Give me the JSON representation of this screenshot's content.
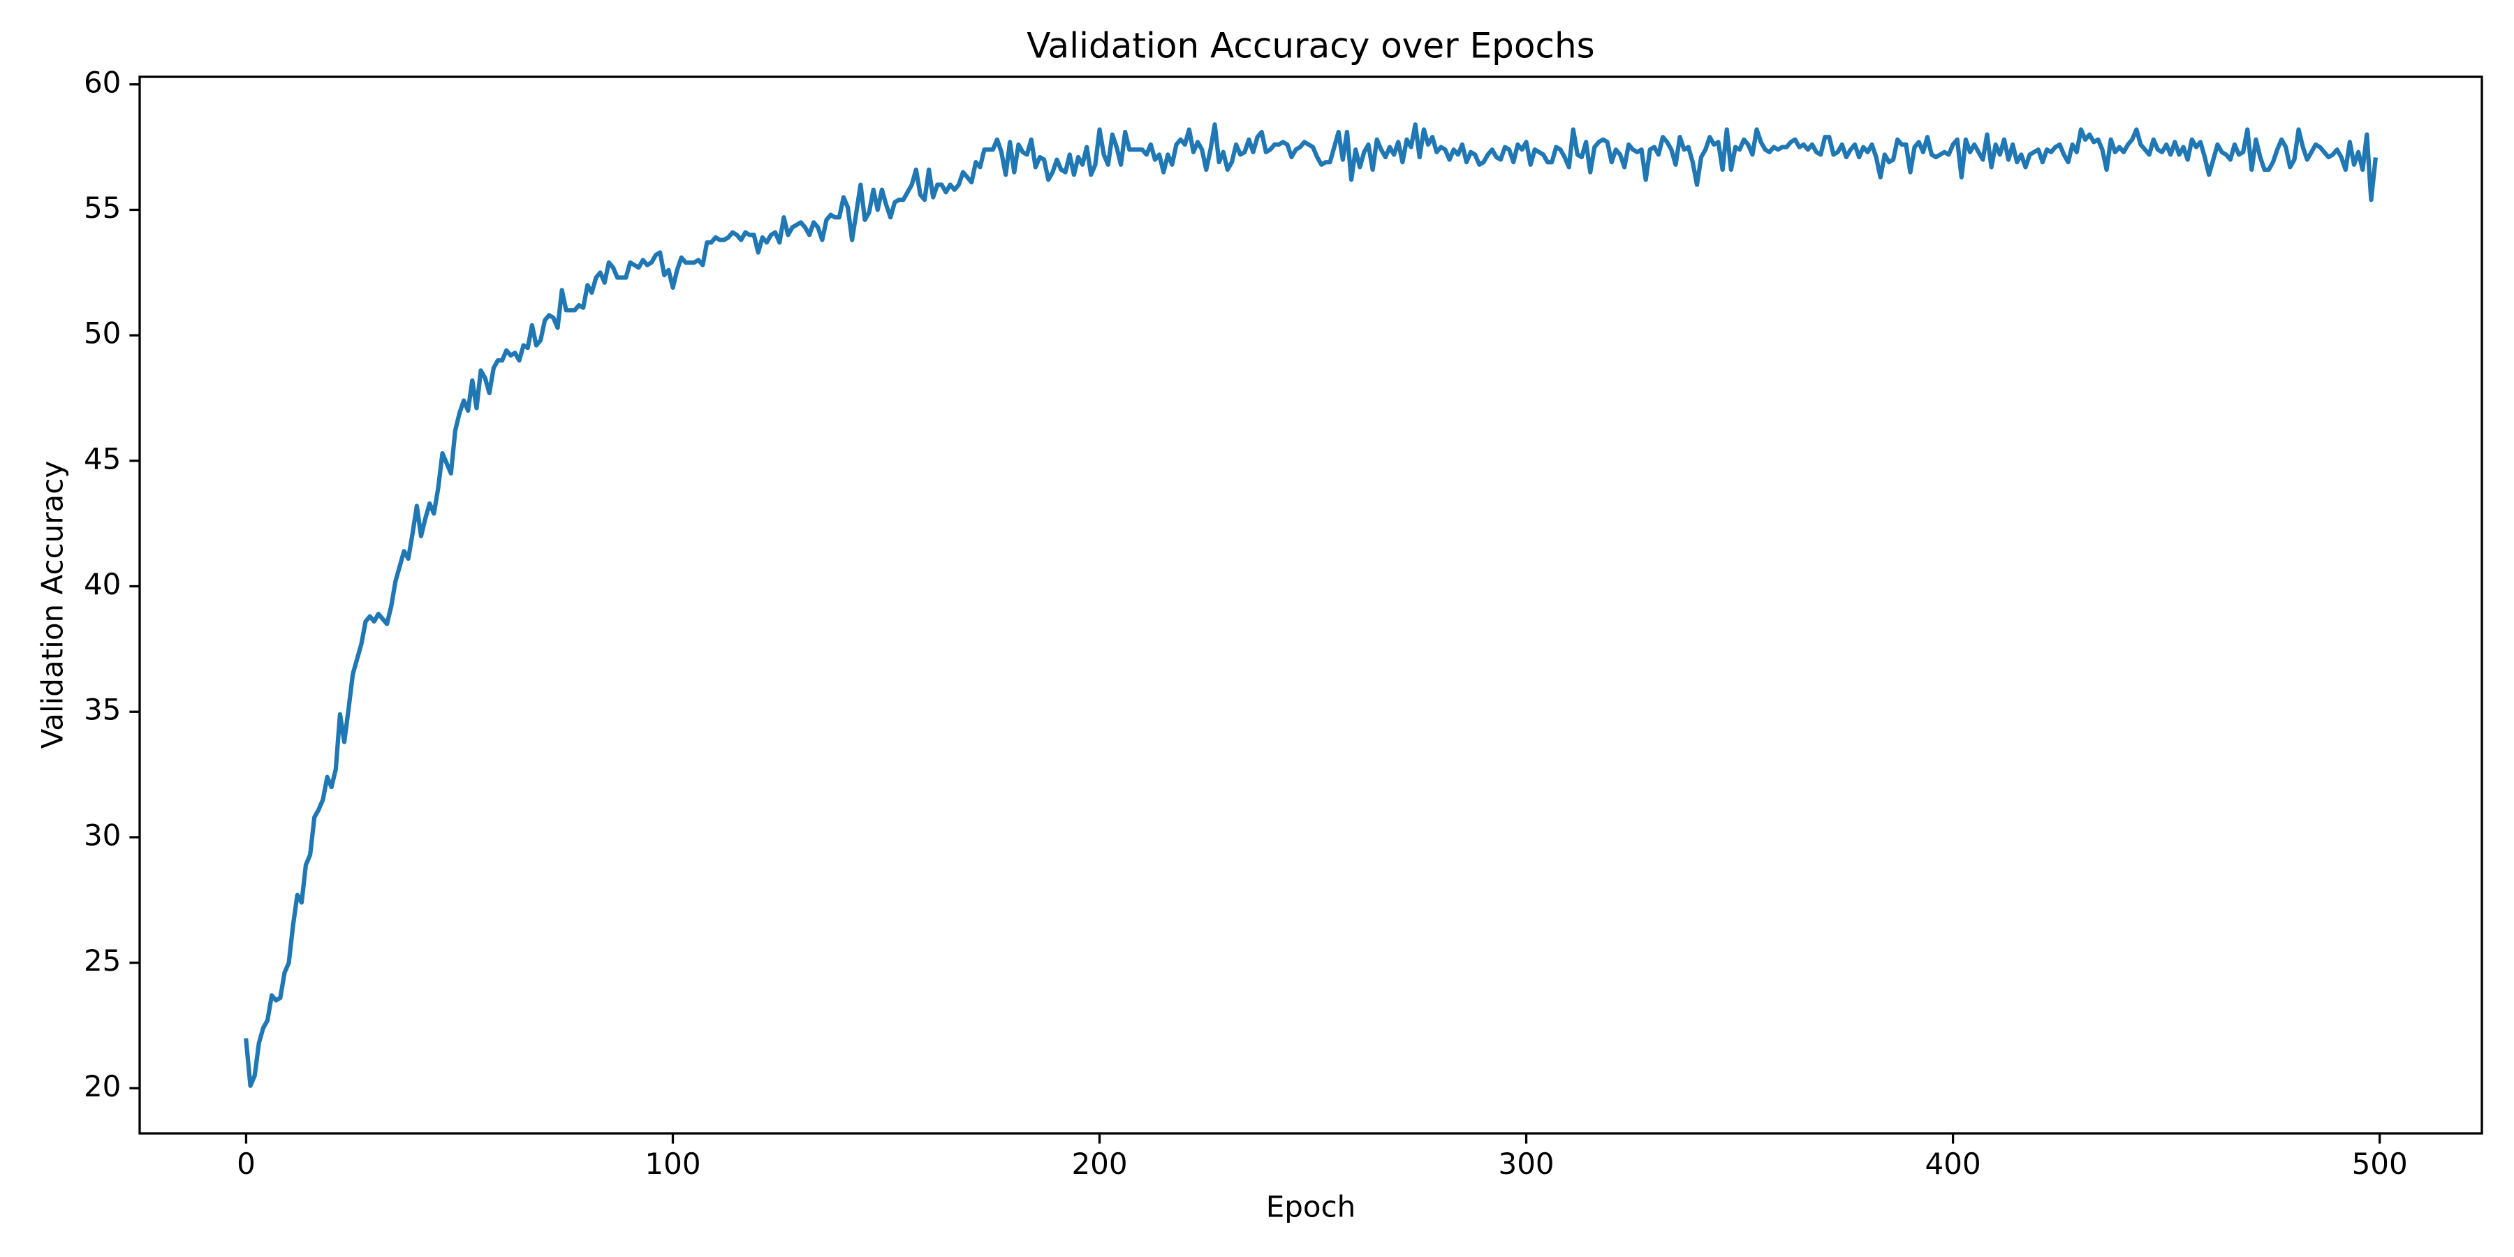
{
  "chart_data": {
    "type": "line",
    "title": "Validation Accuracy over Epochs",
    "x_label": "Epoch",
    "y_label": "Validation Accuracy",
    "x": [
      0,
      1,
      2,
      3,
      4,
      5,
      6,
      7,
      8,
      9,
      10,
      11,
      12,
      13,
      14,
      15,
      16,
      17,
      18,
      19,
      20,
      21,
      22,
      23,
      24,
      25,
      26,
      27,
      28,
      29,
      30,
      31,
      32,
      33,
      34,
      35,
      36,
      37,
      38,
      39,
      40,
      41,
      42,
      43,
      44,
      45,
      46,
      47,
      48,
      49,
      50,
      51,
      52,
      53,
      54,
      55,
      56,
      57,
      58,
      59,
      60,
      61,
      62,
      63,
      64,
      65,
      66,
      67,
      68,
      69,
      70,
      71,
      72,
      73,
      74,
      75,
      76,
      77,
      78,
      79,
      80,
      81,
      82,
      83,
      84,
      85,
      86,
      87,
      88,
      89,
      90,
      91,
      92,
      93,
      94,
      95,
      96,
      97,
      98,
      99,
      100,
      101,
      102,
      103,
      104,
      105,
      106,
      107,
      108,
      109,
      110,
      111,
      112,
      113,
      114,
      115,
      116,
      117,
      118,
      119,
      120,
      121,
      122,
      123,
      124,
      125,
      126,
      127,
      128,
      129,
      130,
      131,
      132,
      133,
      134,
      135,
      136,
      137,
      138,
      139,
      140,
      141,
      142,
      143,
      144,
      145,
      146,
      147,
      148,
      149,
      150,
      151,
      152,
      153,
      154,
      155,
      156,
      157,
      158,
      159,
      160,
      161,
      162,
      163,
      164,
      165,
      166,
      167,
      168,
      169,
      170,
      171,
      172,
      173,
      174,
      175,
      176,
      177,
      178,
      179,
      180,
      181,
      182,
      183,
      184,
      185,
      186,
      187,
      188,
      189,
      190,
      191,
      192,
      193,
      194,
      195,
      196,
      197,
      198,
      199,
      200,
      201,
      202,
      203,
      204,
      205,
      206,
      207,
      208,
      209,
      210,
      211,
      212,
      213,
      214,
      215,
      216,
      217,
      218,
      219,
      220,
      221,
      222,
      223,
      224,
      225,
      226,
      227,
      228,
      229,
      230,
      231,
      232,
      233,
      234,
      235,
      236,
      237,
      238,
      239,
      240,
      241,
      242,
      243,
      244,
      245,
      246,
      247,
      248,
      249,
      250,
      251,
      252,
      253,
      254,
      255,
      256,
      257,
      258,
      259,
      260,
      261,
      262,
      263,
      264,
      265,
      266,
      267,
      268,
      269,
      270,
      271,
      272,
      273,
      274,
      275,
      276,
      277,
      278,
      279,
      280,
      281,
      282,
      283,
      284,
      285,
      286,
      287,
      288,
      289,
      290,
      291,
      292,
      293,
      294,
      295,
      296,
      297,
      298,
      299,
      300,
      301,
      302,
      303,
      304,
      305,
      306,
      307,
      308,
      309,
      310,
      311,
      312,
      313,
      314,
      315,
      316,
      317,
      318,
      319,
      320,
      321,
      322,
      323,
      324,
      325,
      326,
      327,
      328,
      329,
      330,
      331,
      332,
      333,
      334,
      335,
      336,
      337,
      338,
      339,
      340,
      341,
      342,
      343,
      344,
      345,
      346,
      347,
      348,
      349,
      350,
      351,
      352,
      353,
      354,
      355,
      356,
      357,
      358,
      359,
      360,
      361,
      362,
      363,
      364,
      365,
      366,
      367,
      368,
      369,
      370,
      371,
      372,
      373,
      374,
      375,
      376,
      377,
      378,
      379,
      380,
      381,
      382,
      383,
      384,
      385,
      386,
      387,
      388,
      389,
      390,
      391,
      392,
      393,
      394,
      395,
      396,
      397,
      398,
      399,
      400,
      401,
      402,
      403,
      404,
      405,
      406,
      407,
      408,
      409,
      410,
      411,
      412,
      413,
      414,
      415,
      416,
      417,
      418,
      419,
      420,
      421,
      422,
      423,
      424,
      425,
      426,
      427,
      428,
      429,
      430,
      431,
      432,
      433,
      434,
      435,
      436,
      437,
      438,
      439,
      440,
      441,
      442,
      443,
      444,
      445,
      446,
      447,
      448,
      449,
      450,
      451,
      452,
      453,
      454,
      455,
      456,
      457,
      458,
      459,
      460,
      461,
      462,
      463,
      464,
      465,
      466,
      467,
      468,
      469,
      470,
      471,
      472,
      473,
      474,
      475,
      476,
      477,
      478,
      479,
      480,
      481,
      482,
      483,
      484,
      485,
      486,
      487,
      488,
      489,
      490,
      491,
      492,
      493,
      494,
      495,
      496,
      497,
      498,
      499
    ],
    "series": [
      {
        "color": "#1f77b4",
        "values": [
          21.9,
          20.1,
          20.5,
          21.8,
          22.4,
          22.7,
          23.7,
          23.5,
          23.6,
          24.6,
          25.0,
          26.5,
          27.7,
          27.4,
          28.9,
          29.3,
          30.8,
          31.1,
          31.5,
          32.4,
          32.0,
          32.7,
          34.9,
          33.8,
          35.1,
          36.5,
          37.1,
          37.7,
          38.6,
          38.8,
          38.6,
          38.9,
          38.7,
          38.5,
          39.2,
          40.2,
          40.8,
          41.4,
          41.1,
          42.1,
          43.2,
          42.0,
          42.7,
          43.3,
          42.9,
          43.9,
          45.3,
          44.9,
          44.5,
          46.2,
          46.9,
          47.4,
          47.0,
          48.2,
          47.1,
          48.6,
          48.3,
          47.7,
          48.7,
          49.0,
          49.0,
          49.4,
          49.2,
          49.3,
          49.0,
          49.6,
          49.5,
          50.4,
          49.6,
          49.8,
          50.6,
          50.8,
          50.7,
          50.3,
          51.8,
          51.0,
          51.0,
          51.0,
          51.2,
          51.1,
          52.0,
          51.7,
          52.3,
          52.5,
          52.1,
          52.9,
          52.7,
          52.3,
          52.3,
          52.3,
          52.9,
          52.8,
          52.7,
          53.0,
          52.8,
          52.9,
          53.2,
          53.3,
          52.4,
          52.6,
          51.9,
          52.6,
          53.1,
          52.9,
          52.9,
          52.9,
          53.0,
          52.8,
          53.7,
          53.7,
          53.9,
          53.8,
          53.8,
          53.9,
          54.1,
          54.0,
          53.8,
          54.1,
          54.0,
          54.0,
          53.3,
          53.9,
          53.7,
          54.0,
          54.1,
          53.7,
          54.7,
          54.0,
          54.3,
          54.4,
          54.5,
          54.3,
          54.0,
          54.5,
          54.3,
          53.8,
          54.6,
          54.8,
          54.7,
          54.7,
          55.5,
          55.1,
          53.8,
          54.9,
          56.0,
          54.6,
          54.9,
          55.8,
          55.0,
          55.8,
          55.2,
          54.7,
          55.3,
          55.4,
          55.4,
          55.7,
          56.0,
          56.6,
          55.6,
          55.4,
          56.6,
          55.5,
          56.0,
          56.0,
          55.7,
          56.0,
          55.8,
          56.0,
          56.5,
          56.3,
          56.1,
          56.9,
          56.7,
          57.4,
          57.4,
          57.4,
          57.8,
          57.3,
          56.4,
          57.7,
          56.5,
          57.6,
          57.3,
          57.2,
          57.8,
          56.7,
          57.1,
          57.0,
          56.2,
          56.5,
          57.0,
          56.6,
          56.5,
          57.2,
          56.4,
          57.1,
          56.8,
          57.5,
          56.4,
          56.8,
          58.2,
          57.2,
          56.8,
          58.0,
          57.5,
          56.8,
          58.1,
          57.4,
          57.4,
          57.4,
          57.4,
          57.2,
          57.6,
          57.0,
          57.2,
          56.5,
          57.2,
          56.8,
          57.6,
          57.8,
          57.6,
          58.2,
          57.3,
          57.7,
          57.4,
          56.6,
          57.4,
          58.4,
          56.9,
          57.3,
          56.6,
          56.9,
          57.6,
          57.2,
          57.3,
          57.8,
          57.3,
          57.9,
          58.1,
          57.3,
          57.4,
          57.6,
          57.6,
          57.7,
          57.6,
          57.1,
          57.4,
          57.5,
          57.7,
          57.6,
          57.5,
          57.1,
          56.8,
          56.9,
          56.9,
          57.5,
          58.1,
          57.0,
          58.1,
          56.2,
          57.4,
          56.7,
          57.3,
          57.6,
          56.6,
          57.8,
          57.4,
          57.1,
          57.5,
          57.2,
          57.7,
          56.9,
          57.8,
          57.5,
          58.4,
          57.1,
          58.2,
          57.6,
          57.9,
          57.3,
          57.5,
          57.4,
          57.0,
          57.4,
          57.2,
          57.6,
          56.9,
          57.3,
          57.2,
          56.8,
          56.9,
          57.2,
          57.4,
          57.1,
          57.0,
          57.5,
          57.4,
          56.9,
          57.6,
          57.4,
          57.7,
          56.8,
          57.4,
          57.3,
          57.2,
          56.9,
          56.9,
          57.5,
          57.4,
          57.1,
          56.7,
          58.2,
          57.2,
          57.1,
          57.7,
          56.5,
          57.5,
          57.7,
          57.8,
          57.7,
          56.9,
          57.4,
          57.2,
          56.7,
          57.6,
          57.4,
          57.3,
          57.4,
          56.2,
          57.4,
          57.5,
          57.2,
          57.9,
          57.7,
          57.4,
          56.8,
          57.9,
          57.4,
          57.5,
          56.9,
          56.0,
          57.1,
          57.4,
          57.9,
          57.6,
          57.7,
          56.6,
          58.2,
          56.6,
          57.5,
          57.4,
          57.8,
          57.6,
          57.2,
          58.2,
          57.7,
          57.4,
          57.3,
          57.5,
          57.4,
          57.5,
          57.5,
          57.7,
          57.8,
          57.5,
          57.6,
          57.4,
          57.6,
          57.3,
          57.2,
          57.9,
          57.9,
          57.2,
          57.3,
          57.6,
          57.1,
          57.4,
          57.6,
          57.1,
          57.5,
          57.3,
          57.6,
          57.1,
          56.3,
          57.2,
          56.9,
          57.0,
          57.8,
          57.6,
          57.6,
          56.5,
          57.5,
          57.7,
          57.3,
          57.9,
          57.2,
          57.1,
          57.2,
          57.3,
          57.2,
          57.6,
          57.8,
          56.3,
          57.8,
          57.3,
          57.6,
          57.3,
          57.0,
          58.0,
          56.7,
          57.6,
          57.2,
          57.8,
          57.0,
          57.6,
          56.9,
          57.2,
          56.7,
          57.2,
          57.3,
          57.4,
          56.9,
          57.4,
          57.3,
          57.5,
          57.6,
          57.2,
          56.9,
          57.6,
          57.3,
          58.2,
          57.8,
          58.0,
          57.7,
          57.8,
          57.4,
          56.6,
          57.8,
          57.3,
          57.5,
          57.3,
          57.6,
          57.8,
          58.2,
          57.6,
          57.4,
          57.2,
          57.8,
          57.4,
          57.3,
          57.6,
          57.2,
          57.7,
          57.2,
          57.5,
          57.0,
          57.8,
          57.5,
          57.7,
          57.1,
          56.4,
          57.0,
          57.6,
          57.3,
          57.2,
          57.0,
          57.6,
          57.2,
          57.3,
          58.2,
          56.6,
          57.8,
          57.1,
          56.6,
          56.6,
          56.9,
          57.4,
          57.8,
          57.5,
          56.7,
          57.0,
          58.2,
          57.5,
          57.0,
          57.3,
          57.6,
          57.5,
          57.3,
          57.1,
          57.2,
          57.4,
          57.1,
          56.6,
          57.7,
          56.8,
          57.3,
          56.6,
          58.0,
          55.4,
          57.0
        ]
      }
    ],
    "xlim": [
      -24.95,
      523.95
    ],
    "xticks": [
      0,
      100,
      200,
      300,
      400,
      500
    ],
    "ylim": [
      18.2,
      60.3
    ],
    "yticks": [
      20,
      25,
      30,
      35,
      40,
      45,
      50,
      55,
      60
    ]
  }
}
